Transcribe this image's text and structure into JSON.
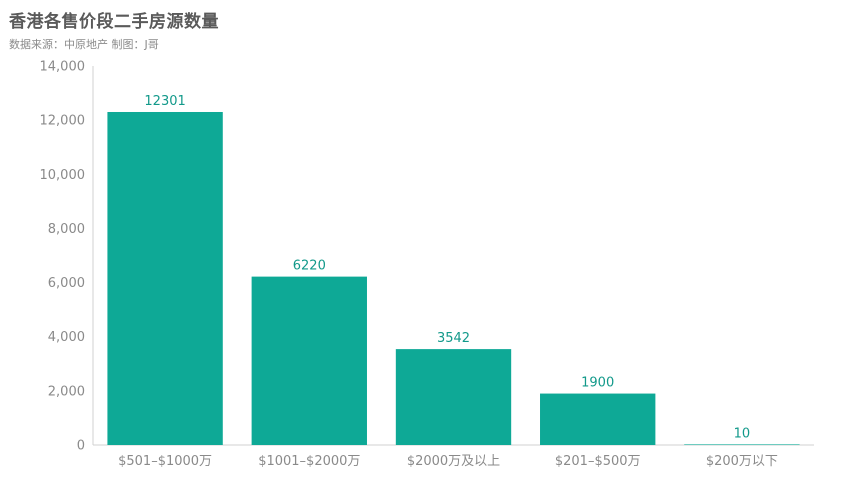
{
  "header": {
    "title": "香港各售价段二手房源数量",
    "subtitle": "数据来源：中原地产 制图：J哥"
  },
  "colors": {
    "bar": "#0ea996",
    "label": "#12998a",
    "axis": "#d0d0d0",
    "tick_text": "#8a8a8a"
  },
  "chart_data": {
    "type": "bar",
    "title": "香港各售价段二手房源数量",
    "subtitle": "数据来源：中原地产 制图：J哥",
    "categories": [
      "$501–$1000万",
      "$1001–$2000万",
      "$2000万及以上",
      "$201–$500万",
      "$200万以下"
    ],
    "values": [
      12301,
      6220,
      3542,
      1900,
      10
    ],
    "data_labels": [
      "12301",
      "6220",
      "3542",
      "1900",
      "10"
    ],
    "yticks": [
      0,
      2000,
      4000,
      6000,
      8000,
      10000,
      12000,
      14000
    ],
    "ytick_labels": [
      "0",
      "2,000",
      "4,000",
      "6,000",
      "8,000",
      "10,000",
      "12,000",
      "14,000"
    ],
    "ylim": [
      0,
      14000
    ],
    "xlabel": "",
    "ylabel": "",
    "grid": false,
    "legend": "none"
  }
}
